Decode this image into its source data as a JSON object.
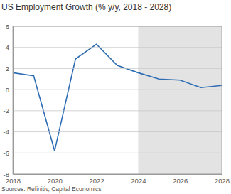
{
  "chart_data": {
    "type": "line",
    "title": "US Employment Growth (% y/y, 2018 - 2028)",
    "source": "Sources: Refinitiv, Capital Economics",
    "x": [
      2018,
      2019,
      2020,
      2021,
      2022,
      2023,
      2024,
      2025,
      2026,
      2027,
      2028
    ],
    "values": [
      1.6,
      1.3,
      -5.8,
      2.9,
      4.3,
      2.3,
      1.6,
      1.0,
      0.9,
      0.2,
      0.4
    ],
    "color": "#2e6db4",
    "shaded_x": [
      2024,
      2028
    ],
    "xlim": [
      2018,
      2028
    ],
    "xticks": [
      2018,
      2020,
      2022,
      2024,
      2026,
      2028
    ],
    "ylim": [
      -8,
      6
    ],
    "yticks": [
      -8,
      -6,
      -4,
      -2,
      0,
      2,
      4,
      6
    ],
    "grid": true
  }
}
